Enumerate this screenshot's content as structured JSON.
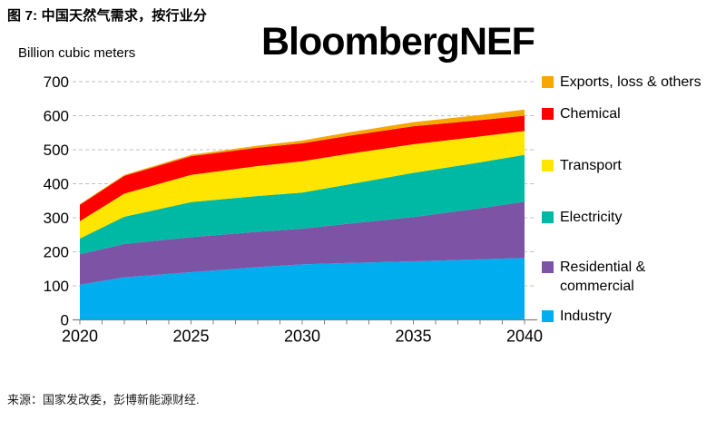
{
  "figure_title": "图 7: 中国天然气需求，按行业分",
  "logo_text": "BloombergNEF",
  "source_text": "来源：国家发改委，彭博新能源财经.",
  "chart_data": {
    "type": "area",
    "stacked": true,
    "title": "图 7: 中国天然气需求，按行业分",
    "unit_label": "Billion cubic meters",
    "xlabel": "",
    "ylabel": "Billion cubic meters",
    "ylim": [
      0,
      700
    ],
    "y_tick_step": 100,
    "grid": "dashed-horizontal",
    "legend_position": "right",
    "x": [
      2020,
      2022,
      2025,
      2028,
      2030,
      2032,
      2035,
      2038,
      2040
    ],
    "x_tick_minor_every": 1,
    "x_tick_label_years": [
      2020,
      2025,
      2030,
      2035,
      2040
    ],
    "series": [
      {
        "name": "Industry",
        "color": "#00aeef",
        "values": [
          103,
          125,
          140,
          155,
          163,
          167,
          172,
          178,
          182
        ]
      },
      {
        "name": "Residential & commercial",
        "color": "#7c53a5",
        "values": [
          90,
          98,
          103,
          104,
          105,
          115,
          130,
          150,
          165
        ]
      },
      {
        "name": "Electricity",
        "color": "#00b9a4",
        "values": [
          46,
          80,
          103,
          105,
          106,
          115,
          130,
          135,
          138
        ]
      },
      {
        "name": "Transport",
        "color": "#ffe600",
        "values": [
          51,
          68,
          80,
          88,
          92,
          90,
          84,
          76,
          70
        ]
      },
      {
        "name": "Chemical",
        "color": "#ff0000",
        "values": [
          48,
          52,
          55,
          54,
          53,
          53,
          53,
          48,
          45
        ]
      },
      {
        "name": "Exports, loss & others",
        "color": "#f6a800",
        "values": [
          2,
          3,
          4,
          6,
          8,
          10,
          12,
          15,
          18
        ]
      }
    ],
    "totals": [
      340,
      426,
      485,
      512,
      527,
      550,
      581,
      602,
      618
    ],
    "legend": [
      {
        "label": "Exports, loss & others",
        "color": "#f6a800"
      },
      {
        "label": "Chemical",
        "color": "#ff0000"
      },
      {
        "label": "Transport",
        "color": "#ffe600"
      },
      {
        "label": "Electricity",
        "color": "#00b9a4"
      },
      {
        "label": "Residential & commercial",
        "color": "#7c53a5"
      },
      {
        "label": "Industry",
        "color": "#00aeef"
      }
    ],
    "axis_colors": {
      "grid": "#bfbfbf",
      "axis": "#808080",
      "text": "#000000"
    }
  }
}
